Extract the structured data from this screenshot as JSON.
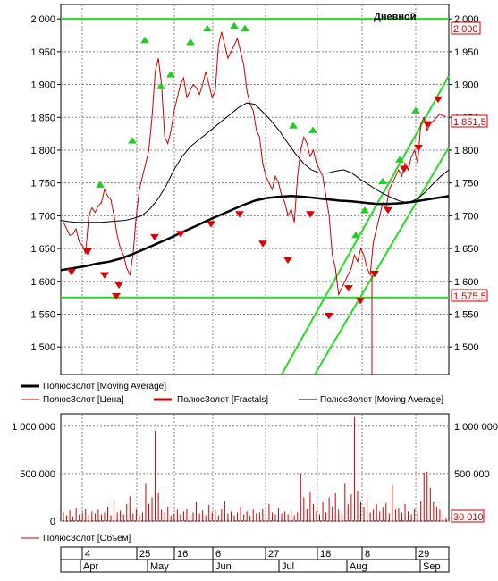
{
  "chart_data": {
    "type": "line",
    "title": "Дневной",
    "price_panel": {
      "y_ticks": [
        "2 000",
        "1 950",
        "1 900",
        "1 850",
        "1 800",
        "1 750",
        "1 700",
        "1 650",
        "1 600",
        "1 550",
        "1 500"
      ],
      "y_tick_values": [
        2000,
        1950,
        1900,
        1850,
        1800,
        1750,
        1700,
        1650,
        1600,
        1550,
        1500
      ],
      "ylim": [
        1458,
        2022
      ],
      "grid": true,
      "last_price_label": "1 851,5",
      "last_price": 1851.5,
      "hline_upper_label": "2 000",
      "hline_upper": 2000,
      "hline_lower_label": "1 575,5",
      "hline_lower": 1575.5,
      "color_price": "#cc0000",
      "color_support": "#22dd22",
      "color_ma": "#000000",
      "price": {
        "name": "ПолюсЗолот [Цена]",
        "values": [
          1690,
          1680,
          1670,
          1672,
          1680,
          1660,
          1655,
          1642,
          1700,
          1712,
          1705,
          1715,
          1720,
          1740,
          1730,
          1724,
          1700,
          1670,
          1650,
          1640,
          1620,
          1610,
          1640,
          1700,
          1740,
          1760,
          1780,
          1800,
          1850,
          1920,
          1940,
          1900,
          1820,
          1810,
          1830,
          1860,
          1880,
          1900,
          1910,
          1880,
          1890,
          1900,
          1895,
          1885,
          1900,
          1920,
          1900,
          1880,
          1890,
          1960,
          1980,
          1960,
          1940,
          1950,
          1960,
          1970,
          1950,
          1930,
          1890,
          1870,
          1860,
          1830,
          1820,
          1780,
          1760,
          1750,
          1740,
          1760,
          1750,
          1730,
          1720,
          1700,
          1710,
          1690,
          1760,
          1800,
          1820,
          1810,
          1790,
          1800,
          1780,
          1770,
          1760,
          1730,
          1700,
          1640,
          1620,
          1580,
          1590,
          1600,
          1610,
          1620,
          1640,
          1630,
          1650,
          1640,
          1620,
          1610,
          1660,
          1680,
          1700,
          1720,
          1710,
          1740,
          1750,
          1760,
          1770,
          1760,
          1780,
          1770,
          1790,
          1800,
          1780,
          1840,
          1850,
          1830,
          1840,
          1845,
          1850,
          1855,
          1852,
          1851.5
        ]
      },
      "moving_average_thin": {
        "name": "ПолюсЗолот [Moving Average]",
        "values": [
          1693,
          1691,
          1690,
          1690,
          1690,
          1690,
          1691,
          1692,
          1693,
          1696,
          1700,
          1710,
          1725,
          1745,
          1770,
          1790,
          1805,
          1815,
          1825,
          1835,
          1845,
          1855,
          1865,
          1872,
          1870,
          1858,
          1845,
          1830,
          1812,
          1795,
          1780,
          1770,
          1765,
          1765,
          1768,
          1770,
          1765,
          1756,
          1748,
          1740,
          1733,
          1727,
          1722,
          1720,
          1725,
          1735,
          1748,
          1760,
          1770
        ]
      },
      "moving_average_thick": {
        "name": "ПолюсЗолот [Moving Average]",
        "values": [
          1617,
          1620,
          1623,
          1627,
          1630,
          1635,
          1642,
          1650,
          1658,
          1666,
          1675,
          1683,
          1692,
          1700,
          1708,
          1716,
          1723,
          1727,
          1729,
          1730,
          1729,
          1727,
          1725,
          1723,
          1722,
          1720,
          1718,
          1718,
          1719,
          1721,
          1724,
          1727,
          1730
        ]
      },
      "fractals_up_price": [
        1745,
        1812,
        1965,
        1895,
        1913,
        1962,
        1983,
        1987,
        1983,
        1835,
        1828,
        1668,
        1706,
        1750,
        1783,
        1858
      ],
      "fractals_down_price": [
        1617,
        1648,
        1612,
        1597,
        1580,
        1670,
        1675,
        1690,
        1705,
        1660,
        1635,
        1705,
        1550,
        1592,
        1573,
        1614,
        1711,
        1774,
        1806,
        1842,
        1880
      ]
    },
    "volume_panel": {
      "y_ticks": [
        "1 000 000",
        "500 000",
        "0"
      ],
      "y_tick_values": [
        1000000,
        500000,
        0
      ],
      "ylim": [
        0,
        1130000
      ],
      "last_volume_label": "30 010",
      "last_volume": 30010,
      "series_name": "ПолюсЗолот [Объем]",
      "values": [
        90000,
        60000,
        110000,
        50000,
        140000,
        70000,
        90000,
        130000,
        60000,
        100000,
        80000,
        120000,
        70000,
        90000,
        150000,
        60000,
        220000,
        90000,
        110000,
        70000,
        180000,
        260000,
        80000,
        120000,
        60000,
        90000,
        400000,
        180000,
        250000,
        950000,
        300000,
        120000,
        90000,
        150000,
        60000,
        80000,
        120000,
        70000,
        100000,
        130000,
        70000,
        90000,
        200000,
        80000,
        110000,
        60000,
        170000,
        90000,
        120000,
        60000,
        130000,
        210000,
        80000,
        100000,
        60000,
        90000,
        150000,
        70000,
        100000,
        60000,
        120000,
        80000,
        90000,
        130000,
        60000,
        180000,
        90000,
        70000,
        140000,
        80000,
        100000,
        70000,
        110000,
        60000,
        90000,
        500000,
        250000,
        130000,
        310000,
        180000,
        100000,
        70000,
        200000,
        90000,
        250000,
        150000,
        300000,
        120000,
        80000,
        400000,
        180000,
        280000,
        1100000,
        320000,
        200000,
        150000,
        250000,
        90000,
        120000,
        180000,
        100000,
        150000,
        190000,
        80000,
        380000,
        120000,
        140000,
        90000,
        180000,
        100000,
        70000,
        130000,
        90000,
        210000,
        510000,
        520000,
        350000,
        200000,
        150000,
        120000,
        80000,
        30010
      ]
    },
    "legend_price": [
      {
        "name": "ПолюсЗолот [Moving Average]",
        "style": "thick-black"
      },
      {
        "name": "ПолюсЗолот [Цена]",
        "style": "thin-red"
      },
      {
        "name": "ПолюсЗолот [Fractals]",
        "style": "thick-red"
      },
      {
        "name": "ПолюсЗолот [Moving Average]",
        "style": "thin-black"
      }
    ],
    "legend_volume": [
      {
        "name": "ПолюсЗолот [Объем]",
        "style": "thin-red"
      }
    ],
    "x_axis": {
      "day_labels": [
        "4",
        "25",
        "16",
        "6",
        "27",
        "18",
        "8",
        "29"
      ],
      "month_labels": [
        "Apr",
        "May",
        "Jun",
        "Jul",
        "Aug",
        "Sep"
      ]
    }
  }
}
